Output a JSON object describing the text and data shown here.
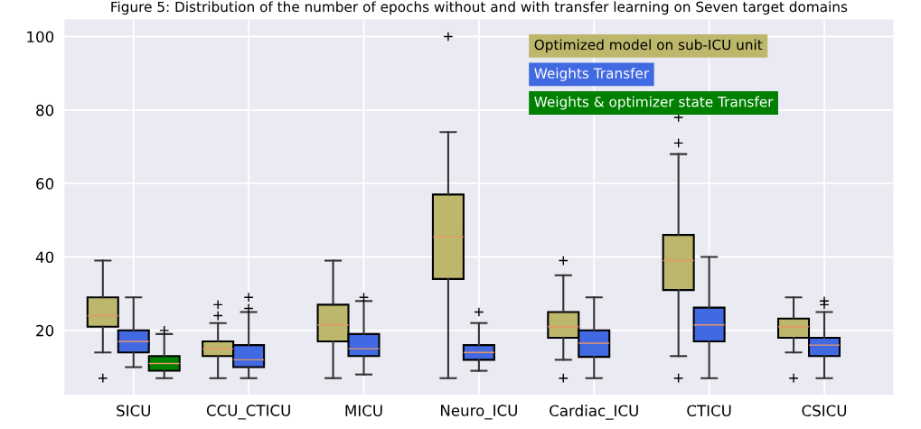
{
  "chart_data": {
    "type": "box",
    "title": "Figure 5: Distribution of the number of epochs without and with transfer learning on Seven target domains",
    "categories": [
      "SICU",
      "CCU_CTICU",
      "MICU",
      "Neuro_ICU",
      "Cardiac_ICU",
      "CTICU",
      "CSICU"
    ],
    "ylim": [
      2.5,
      104.7
    ],
    "yticks": [
      20,
      40,
      60,
      80,
      100
    ],
    "grid": true,
    "legend": "top right",
    "series": [
      {
        "name": "Optimized model on sub-ICU unit",
        "color": "#bdb76b",
        "boxes": [
          {
            "low": 14,
            "q1": 21,
            "median": 24,
            "q3": 29,
            "high": 39,
            "outliers": [
              7
            ]
          },
          {
            "low": 7,
            "q1": 13,
            "median": 15,
            "q3": 17,
            "high": 22,
            "outliers": [
              24,
              27
            ]
          },
          {
            "low": 7,
            "q1": 17,
            "median": 21.5,
            "q3": 27,
            "high": 39
          },
          {
            "low": 7,
            "q1": 34,
            "median": 45.5,
            "q3": 57,
            "high": 74,
            "outliers": [
              100
            ]
          },
          {
            "low": 12,
            "q1": 18,
            "median": 21,
            "q3": 25,
            "high": 35,
            "outliers": [
              39,
              7
            ]
          },
          {
            "low": 13,
            "q1": 31,
            "median": 39,
            "q3": 46,
            "high": 68,
            "outliers": [
              78,
              71,
              7
            ]
          },
          {
            "low": 14,
            "q1": 18,
            "median": 21,
            "q3": 23.2,
            "high": 29,
            "outliers": [
              7
            ]
          }
        ]
      },
      {
        "name": "Weights Transfer",
        "color": "#4169e1",
        "boxes": [
          {
            "low": 10,
            "q1": 14,
            "median": 17,
            "q3": 20,
            "high": 29
          },
          {
            "low": 7,
            "q1": 10,
            "median": 12,
            "q3": 16,
            "high": 25,
            "outliers": [
              26,
              29
            ]
          },
          {
            "low": 8,
            "q1": 13,
            "median": 15,
            "q3": 19,
            "high": 28,
            "outliers": [
              29
            ]
          },
          {
            "low": 9,
            "q1": 12,
            "median": 14,
            "q3": 16,
            "high": 22,
            "outliers": [
              25
            ]
          },
          {
            "low": 7,
            "q1": 12.8,
            "median": 16.5,
            "q3": 20,
            "high": 29
          },
          {
            "low": 7,
            "q1": 17,
            "median": 21.5,
            "q3": 26.2,
            "high": 40
          },
          {
            "low": 7,
            "q1": 13,
            "median": 16,
            "q3": 18,
            "high": 25,
            "outliers": [
              28,
              27
            ]
          }
        ]
      },
      {
        "name": "Weights & optimizer state Transfer",
        "color": "#008000",
        "boxes": [
          {
            "low": 7,
            "q1": 9,
            "median": 11,
            "q3": 13,
            "high": 19,
            "outliers": [
              20
            ]
          },
          null,
          null,
          null,
          null,
          null,
          null
        ]
      }
    ]
  }
}
